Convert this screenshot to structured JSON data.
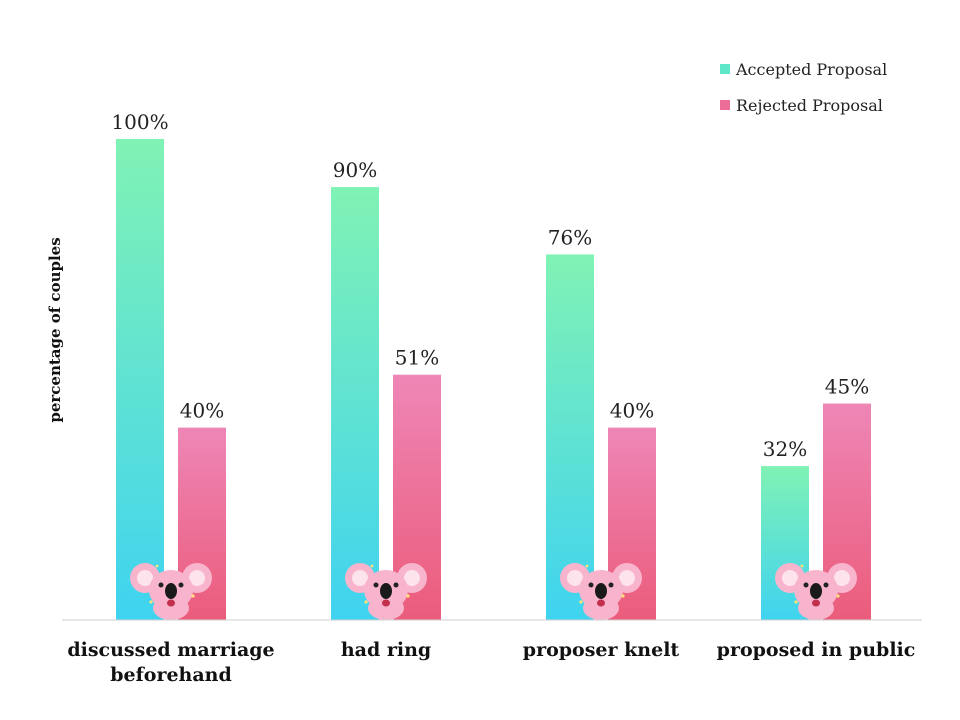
{
  "chart_data": {
    "type": "bar",
    "title": "",
    "xlabel": "",
    "ylabel": "percentage of couples",
    "ylim": [
      0,
      100
    ],
    "categories": [
      "discussed marriage beforehand",
      "had ring",
      "proposer knelt",
      "proposed in public"
    ],
    "category_lines": [
      [
        "discussed marriage",
        "beforehand"
      ],
      [
        "had ring"
      ],
      [
        "proposer knelt"
      ],
      [
        "proposed in public"
      ]
    ],
    "series": [
      {
        "name": "Accepted Proposal",
        "values": [
          100,
          90,
          76,
          32
        ],
        "labels": [
          "100%",
          "90%",
          "76%",
          "32%"
        ],
        "color_top": "#80f2b4",
        "color_bottom": "#3fd3f0"
      },
      {
        "name": "Rejected Proposal",
        "values": [
          40,
          51,
          40,
          45
        ],
        "labels": [
          "40%",
          "51%",
          "40%",
          "45%"
        ],
        "color_top": "#ee86b6",
        "color_bottom": "#eb5c7b"
      }
    ],
    "legend_position": "top-right",
    "grid": false
  },
  "legend": {
    "accepted_label": "Accepted Proposal",
    "rejected_label": "Rejected Proposal",
    "accepted_color": "#5de6c8",
    "rejected_color": "#ec6e98"
  },
  "axis": {
    "ylabel": "percentage of couples"
  },
  "decoration": {
    "icon": "koala-icon",
    "koala_color": "#f8b4cc"
  }
}
